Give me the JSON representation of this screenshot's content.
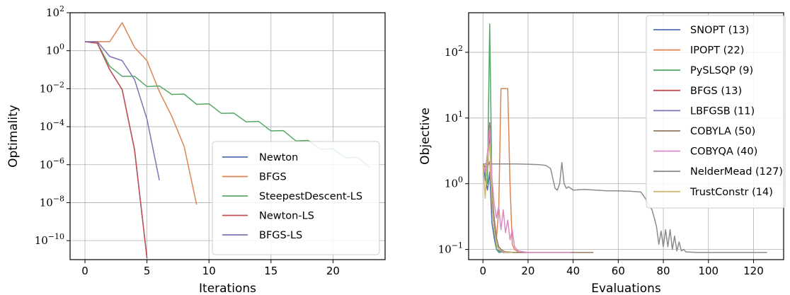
{
  "chart_data": [
    {
      "type": "line",
      "xlabel": "Iterations",
      "ylabel": "Optimality",
      "xscale": "linear",
      "yscale": "log",
      "xlim": [
        -1.2,
        24.2
      ],
      "ylim": [
        1e-11,
        100
      ],
      "xticks": [
        0,
        5,
        10,
        15,
        20
      ],
      "yticks": [
        {
          "value": 100,
          "base": "10",
          "exp": "2"
        },
        {
          "value": 1,
          "base": "10",
          "exp": "0"
        },
        {
          "value": 0.01,
          "base": "10",
          "exp": "−2"
        },
        {
          "value": 0.0001,
          "base": "10",
          "exp": "−4"
        },
        {
          "value": 1e-06,
          "base": "10",
          "exp": "−6"
        },
        {
          "value": 1e-08,
          "base": "10",
          "exp": "−8"
        },
        {
          "value": 1e-10,
          "base": "10",
          "exp": "−10"
        }
      ],
      "grid": true,
      "legend": "lower-right",
      "series": [
        {
          "name": "Newton",
          "color": "#4c72b0",
          "x": [
            0,
            1,
            2,
            3,
            4,
            5
          ],
          "y": [
            3,
            2.5,
            0.1,
            0.009,
            6e-06,
            1.2e-11
          ]
        },
        {
          "name": "BFGS",
          "color": "#dd8452",
          "x": [
            0,
            1,
            2,
            3,
            4,
            5,
            6,
            7,
            8,
            9
          ],
          "y": [
            3,
            3,
            3,
            30,
            1.5,
            0.3,
            0.007,
            0.00035,
            9e-06,
            8e-09
          ]
        },
        {
          "name": "SteepestDescent-LS",
          "color": "#55a868",
          "x": [
            0,
            1,
            2,
            3,
            4,
            5,
            6,
            7,
            8,
            9,
            10,
            11,
            12,
            13,
            14,
            15,
            16,
            17,
            18,
            19,
            20,
            21,
            22,
            23
          ],
          "y": [
            3,
            2.5,
            0.15,
            0.045,
            0.045,
            0.013,
            0.014,
            0.005,
            0.0052,
            0.0015,
            0.0016,
            0.0005,
            0.00052,
            0.00018,
            0.00019,
            6e-05,
            6.2e-05,
            1.8e-05,
            1.9e-05,
            6.5e-06,
            6.8e-06,
            2.3e-06,
            2.4e-06,
            7e-07
          ]
        },
        {
          "name": "Newton-LS",
          "color": "#c44e52",
          "x": [
            0,
            1,
            2,
            3,
            4,
            5
          ],
          "y": [
            3,
            2.5,
            0.1,
            0.009,
            6e-06,
            1.2e-11
          ]
        },
        {
          "name": "BFGS-LS",
          "color": "#8172b3",
          "x": [
            0,
            1,
            2,
            3,
            4,
            5,
            6
          ],
          "y": [
            3,
            3,
            0.5,
            0.3,
            0.03,
            0.00025,
            1.5e-07
          ]
        }
      ]
    },
    {
      "type": "line",
      "xlabel": "Evaluations",
      "ylabel": "Objective",
      "xscale": "linear",
      "yscale": "log",
      "xlim": [
        -6.35,
        133.35
      ],
      "ylim": [
        0.07,
        400
      ],
      "xticks": [
        0,
        20,
        40,
        60,
        80,
        100,
        120
      ],
      "yticks": [
        {
          "value": 100,
          "base": "10",
          "exp": "2"
        },
        {
          "value": 10,
          "base": "10",
          "exp": "1"
        },
        {
          "value": 1,
          "base": "10",
          "exp": "0"
        },
        {
          "value": 0.1,
          "base": "10",
          "exp": "−1"
        }
      ],
      "grid": true,
      "legend": "upper-right",
      "series": [
        {
          "name": "SNOPT (13)",
          "color": "#4c72b0",
          "x": [
            0,
            1,
            2,
            3,
            4,
            5,
            6,
            7,
            8,
            9,
            10,
            11,
            12
          ],
          "y": [
            2,
            1.2,
            0.8,
            1.5,
            0.25,
            0.15,
            0.1,
            0.095,
            0.092,
            0.091,
            0.09,
            0.09,
            0.09
          ]
        },
        {
          "name": "IPOPT (22)",
          "color": "#dd8452",
          "x": [
            0,
            1,
            2,
            3,
            4,
            5,
            6,
            7,
            8,
            9,
            10,
            11,
            12,
            13,
            14,
            15,
            16,
            17,
            18,
            19,
            20,
            21
          ],
          "y": [
            2,
            1.5,
            1.8,
            2.2,
            0.5,
            0.2,
            0.15,
            0.4,
            28,
            28,
            28,
            28,
            1.0,
            0.12,
            0.1,
            0.095,
            0.09,
            0.09,
            0.09,
            0.09,
            0.09,
            0.09
          ]
        },
        {
          "name": "PySLSQP (9)",
          "color": "#55a868",
          "x": [
            0,
            1,
            2,
            3,
            4,
            5,
            6,
            7,
            8
          ],
          "y": [
            2,
            1.5,
            1.0,
            270,
            0.8,
            0.2,
            0.1,
            0.09,
            0.09
          ]
        },
        {
          "name": "BFGS (13)",
          "color": "#c44e52",
          "x": [
            0,
            1,
            2,
            3,
            4,
            5,
            6,
            7,
            8,
            9,
            10,
            11,
            12
          ],
          "y": [
            2,
            1.5,
            2,
            8,
            0.5,
            0.2,
            0.12,
            0.1,
            0.095,
            0.092,
            0.09,
            0.09,
            0.09
          ]
        },
        {
          "name": "LBFGSB (11)",
          "color": "#8172b3",
          "x": [
            0,
            1,
            2,
            3,
            4,
            5,
            6,
            7,
            8,
            9,
            10
          ],
          "y": [
            2,
            1.5,
            2,
            6,
            0.5,
            0.2,
            0.12,
            0.1,
            0.095,
            0.09,
            0.09
          ]
        },
        {
          "name": "COBYLA (50)",
          "color": "#937860",
          "x": [
            0,
            1,
            2,
            3,
            4,
            5,
            6,
            7,
            8,
            9,
            10,
            12,
            14,
            16,
            18,
            20,
            25,
            30,
            35,
            40,
            45,
            49
          ],
          "y": [
            2,
            1.8,
            2.0,
            8.5,
            0.7,
            0.3,
            0.15,
            0.11,
            0.1,
            0.095,
            0.092,
            0.091,
            0.09,
            0.09,
            0.09,
            0.09,
            0.09,
            0.09,
            0.09,
            0.09,
            0.09,
            0.09
          ]
        },
        {
          "name": "COBYQA (40)",
          "color": "#da8bc3",
          "x": [
            0,
            1,
            2,
            3,
            4,
            5,
            6,
            7,
            8,
            9,
            10,
            11,
            12,
            13,
            14,
            15,
            16,
            18,
            20,
            25,
            30,
            35,
            39
          ],
          "y": [
            2,
            1.5,
            3,
            7,
            1.2,
            0.5,
            0.3,
            0.45,
            0.2,
            0.4,
            0.18,
            0.28,
            0.14,
            0.2,
            0.11,
            0.1,
            0.095,
            0.092,
            0.09,
            0.09,
            0.09,
            0.09,
            0.09
          ]
        },
        {
          "name": "NelderMead (127)",
          "color": "#8c8c8c",
          "x": [
            0,
            2,
            5,
            10,
            15,
            20,
            25,
            28,
            30,
            31,
            32,
            33,
            34,
            35,
            36,
            37,
            38,
            40,
            45,
            50,
            55,
            60,
            65,
            70,
            72,
            74,
            75,
            76,
            77,
            78,
            79,
            80,
            81,
            82,
            83,
            84,
            85,
            86,
            87,
            88,
            89,
            90,
            92,
            95,
            100,
            110,
            120,
            126
          ],
          "y": [
            2,
            2,
            2,
            2,
            2,
            1.98,
            1.95,
            1.9,
            1.7,
            1.2,
            0.85,
            0.8,
            1.0,
            2.1,
            1.0,
            0.85,
            0.9,
            0.8,
            0.82,
            0.8,
            0.78,
            0.78,
            0.77,
            0.75,
            0.6,
            0.45,
            0.4,
            0.3,
            0.22,
            0.12,
            0.19,
            0.11,
            0.2,
            0.11,
            0.2,
            0.1,
            0.16,
            0.095,
            0.13,
            0.095,
            0.1,
            0.092,
            0.091,
            0.09,
            0.09,
            0.09,
            0.09,
            0.09
          ]
        },
        {
          "name": "TrustConstr (14)",
          "color": "#ccb974",
          "x": [
            0,
            1,
            2,
            3,
            4,
            5,
            6,
            7,
            8,
            9,
            10,
            11,
            12,
            13
          ],
          "y": [
            2,
            0.6,
            2.5,
            4,
            0.5,
            0.2,
            0.12,
            0.1,
            0.095,
            0.092,
            0.09,
            0.09,
            0.09,
            0.09
          ]
        }
      ]
    }
  ]
}
